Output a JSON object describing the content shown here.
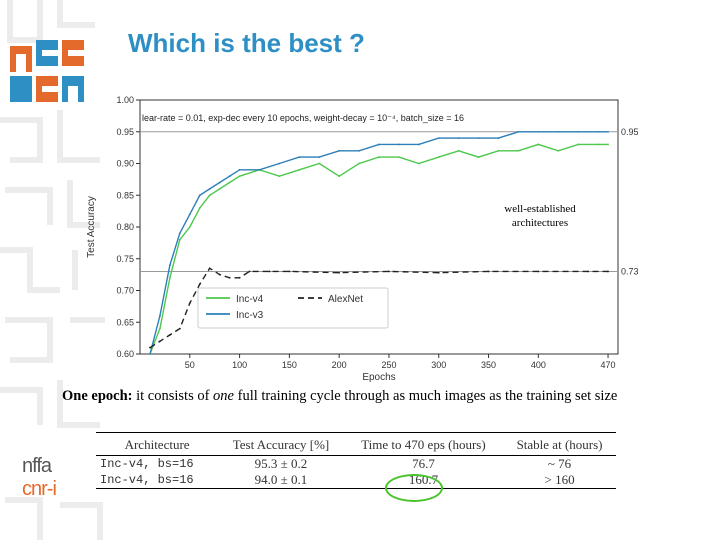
{
  "slide": {
    "title": "Which is the best ?",
    "brand_line1": "nffa",
    "brand_line2": "cnr-i"
  },
  "chart_data": {
    "type": "line",
    "title": "lear-rate = 0.01, exp-dec every 10 epochs, weight-decay = 10⁻⁴, batch_size = 16",
    "xlabel": "Epochs",
    "ylabel": "Test Accuracy",
    "xlim": [
      0,
      480
    ],
    "ylim": [
      0.6,
      1.0
    ],
    "xticks": [
      50,
      100,
      150,
      200,
      250,
      300,
      350,
      400,
      470
    ],
    "yticks": [
      "0.60",
      "0.65",
      "0.70",
      "0.75",
      "0.80",
      "0.85",
      "0.90",
      "0.95",
      "1.00"
    ],
    "reference_lines": [
      {
        "y": 0.95,
        "label": "0.95"
      },
      {
        "y": 0.73,
        "label": "0.73"
      }
    ],
    "annotation": "well-established architectures",
    "legend_placement": "lower-left",
    "series": [
      {
        "name": "Inc-v4",
        "color": "#4cc84c",
        "style": "solid",
        "x": [
          10,
          20,
          30,
          40,
          50,
          60,
          70,
          80,
          90,
          100,
          120,
          140,
          160,
          180,
          200,
          220,
          240,
          260,
          280,
          300,
          320,
          340,
          360,
          380,
          400,
          420,
          440,
          460,
          470
        ],
        "y": [
          0.6,
          0.64,
          0.72,
          0.78,
          0.8,
          0.83,
          0.85,
          0.86,
          0.87,
          0.88,
          0.89,
          0.88,
          0.89,
          0.9,
          0.88,
          0.9,
          0.91,
          0.91,
          0.9,
          0.91,
          0.92,
          0.91,
          0.92,
          0.92,
          0.93,
          0.92,
          0.93,
          0.93,
          0.93
        ]
      },
      {
        "name": "Inc-v3",
        "color": "#2c7fb8",
        "style": "solid",
        "x": [
          10,
          20,
          30,
          40,
          50,
          60,
          70,
          80,
          90,
          100,
          120,
          140,
          160,
          180,
          200,
          220,
          240,
          260,
          280,
          300,
          320,
          340,
          360,
          380,
          400,
          420,
          440,
          460,
          470
        ],
        "y": [
          0.6,
          0.66,
          0.74,
          0.79,
          0.82,
          0.85,
          0.86,
          0.87,
          0.88,
          0.89,
          0.89,
          0.9,
          0.91,
          0.91,
          0.92,
          0.92,
          0.93,
          0.93,
          0.93,
          0.94,
          0.94,
          0.94,
          0.94,
          0.95,
          0.95,
          0.95,
          0.95,
          0.95,
          0.95
        ]
      },
      {
        "name": "AlexNet",
        "color": "#222222",
        "style": "dashed",
        "x": [
          10,
          20,
          30,
          40,
          50,
          60,
          70,
          80,
          90,
          100,
          110,
          130,
          150,
          200,
          250,
          300,
          350,
          400,
          450,
          470
        ],
        "y": [
          0.61,
          0.62,
          0.63,
          0.64,
          0.68,
          0.71,
          0.735,
          0.725,
          0.72,
          0.72,
          0.73,
          0.73,
          0.73,
          0.728,
          0.73,
          0.728,
          0.73,
          0.73,
          0.73,
          0.73
        ]
      }
    ]
  },
  "note": {
    "bold": "One epoch:",
    "text": " it consists of ",
    "italic": "one",
    "rest": " full training cycle through as much images as the training set size"
  },
  "table": {
    "headers": [
      "Architecture",
      "Test Accuracy [%]",
      "Time to 470 eps (hours)",
      "Stable at (hours)"
    ],
    "rows": [
      [
        "Inc-v4,  bs=16",
        "95.3 ± 0.2",
        "76.7",
        "~ 76"
      ],
      [
        "Inc-v4,  bs=16",
        "94.0 ± 0.1",
        "160.7",
        "> 160"
      ]
    ]
  },
  "colors": {
    "title": "#2e8fc4",
    "logo_orange": "#e46a2b",
    "logo_blue": "#2e8fc4",
    "highlight": "#49c22c"
  }
}
